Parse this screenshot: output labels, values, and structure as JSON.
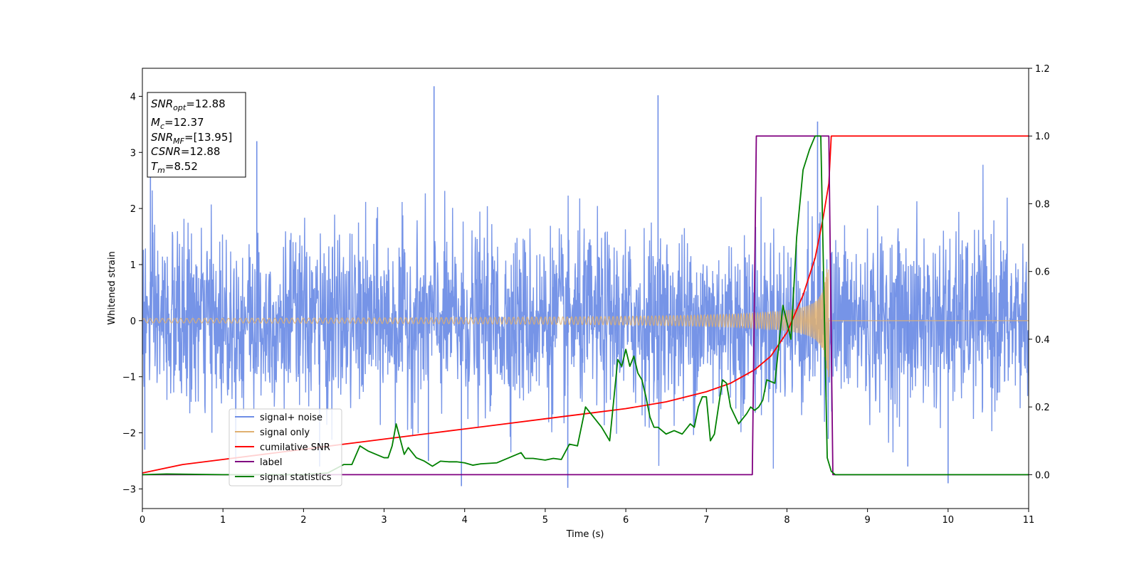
{
  "chart_data": {
    "type": "line",
    "xlabel": "Time (s)",
    "ylabel": "Whitened strain",
    "xlim": [
      0,
      11
    ],
    "ylim": [
      -3.35,
      4.5
    ],
    "y2lim": [
      -0.1,
      1.2
    ],
    "x_ticks": [
      "0",
      "1",
      "2",
      "3",
      "4",
      "5",
      "6",
      "7",
      "8",
      "9",
      "10",
      "11"
    ],
    "y_ticks": [
      "−3",
      "−2",
      "−1",
      "0",
      "1",
      "2",
      "3",
      "4"
    ],
    "y2_ticks": [
      "0.0",
      "0.2",
      "0.4",
      "0.6",
      "0.8",
      "1.0",
      "1.2"
    ],
    "grid": false,
    "legend_position": "lower-left",
    "colors": {
      "signal_noise": "#6f8ee6",
      "signal_only": "#e0b070",
      "cumulative_snr": "#ff0000",
      "label": "#800080",
      "signal_statistics": "#008000"
    },
    "annotation": {
      "lines": [
        {
          "base": "SNR",
          "sub": "opt",
          "value": "=12.88"
        },
        {
          "base": "M",
          "sub": "c",
          "value": "=12.37"
        },
        {
          "base": "SNR",
          "sub": "MF",
          "value": "=[13.95]"
        },
        {
          "base": "CSNR",
          "sub": "",
          "value": "=12.88"
        },
        {
          "base": "T",
          "sub": "m",
          "value": "=8.52"
        }
      ]
    },
    "series": [
      {
        "name": "signal+ noise",
        "axis": "left",
        "description": "whitened strain samples, roughly ±2 with spikes to 4.2",
        "spikes": [
          [
            3.62,
            4.18
          ],
          [
            6.4,
            4.02
          ],
          [
            3.55,
            -2.5
          ],
          [
            5.28,
            -2.98
          ],
          [
            3.96,
            -2.95
          ],
          [
            10.0,
            -2.9
          ],
          [
            0.1,
            3.1
          ],
          [
            1.42,
            3.2
          ],
          [
            8.38,
            3.55
          ],
          [
            2.2,
            -2.6
          ],
          [
            9.5,
            -2.6
          ],
          [
            0.03,
            -2.3
          ]
        ]
      },
      {
        "name": "signal only",
        "axis": "left",
        "description": "chirp ending at merger",
        "merger_time": 8.52,
        "start_amplitude": 0.04,
        "peak_amplitude": 1.0
      },
      {
        "name": "cumilative SNR",
        "axis": "right",
        "x": [
          0,
          0.5,
          1,
          1.5,
          2,
          2.5,
          3,
          3.5,
          4,
          4.5,
          5,
          5.5,
          6,
          6.5,
          7,
          7.3,
          7.6,
          7.8,
          8.0,
          8.2,
          8.35,
          8.45,
          8.52,
          8.55,
          11
        ],
        "y": [
          0.005,
          0.03,
          0.045,
          0.06,
          0.075,
          0.09,
          0.105,
          0.12,
          0.135,
          0.15,
          0.165,
          0.18,
          0.195,
          0.215,
          0.245,
          0.27,
          0.31,
          0.35,
          0.42,
          0.53,
          0.64,
          0.76,
          0.86,
          1.0,
          1.0
        ]
      },
      {
        "name": "label",
        "axis": "right",
        "x": [
          0,
          7.57,
          7.62,
          8.52,
          8.57,
          11
        ],
        "y": [
          0.0,
          0.0,
          1.0,
          1.0,
          0.0,
          0.0
        ]
      },
      {
        "name": "signal statistics",
        "axis": "right",
        "x": [
          0,
          0.3,
          1,
          2,
          2.3,
          2.5,
          2.6,
          2.7,
          2.8,
          2.9,
          3.0,
          3.05,
          3.1,
          3.15,
          3.25,
          3.3,
          3.4,
          3.5,
          3.6,
          3.7,
          3.8,
          3.9,
          4.0,
          4.1,
          4.2,
          4.4,
          4.6,
          4.7,
          4.75,
          4.85,
          5.0,
          5.1,
          5.2,
          5.3,
          5.4,
          5.5,
          5.6,
          5.7,
          5.8,
          5.9,
          5.95,
          6.0,
          6.05,
          6.1,
          6.15,
          6.2,
          6.25,
          6.3,
          6.35,
          6.4,
          6.5,
          6.6,
          6.7,
          6.8,
          6.85,
          6.9,
          6.95,
          7.0,
          7.05,
          7.1,
          7.15,
          7.2,
          7.25,
          7.3,
          7.4,
          7.5,
          7.55,
          7.6,
          7.65,
          7.7,
          7.75,
          7.85,
          7.95,
          8.05,
          8.12,
          8.2,
          8.28,
          8.35,
          8.42,
          8.5,
          8.55,
          8.6,
          8.65,
          11
        ],
        "y": [
          0.0,
          0.002,
          0.0,
          0.0,
          0.005,
          0.03,
          0.03,
          0.085,
          0.07,
          0.06,
          0.05,
          0.05,
          0.085,
          0.15,
          0.06,
          0.08,
          0.05,
          0.04,
          0.025,
          0.04,
          0.038,
          0.038,
          0.035,
          0.028,
          0.032,
          0.035,
          0.055,
          0.065,
          0.048,
          0.048,
          0.043,
          0.048,
          0.045,
          0.09,
          0.085,
          0.2,
          0.17,
          0.14,
          0.1,
          0.34,
          0.32,
          0.37,
          0.32,
          0.35,
          0.3,
          0.28,
          0.23,
          0.17,
          0.14,
          0.14,
          0.12,
          0.13,
          0.12,
          0.15,
          0.14,
          0.2,
          0.23,
          0.23,
          0.1,
          0.12,
          0.2,
          0.28,
          0.27,
          0.2,
          0.15,
          0.18,
          0.2,
          0.19,
          0.2,
          0.22,
          0.28,
          0.27,
          0.5,
          0.4,
          0.7,
          0.9,
          0.96,
          1.0,
          1.0,
          0.05,
          0.01,
          0.0,
          0.0,
          0.0
        ]
      }
    ]
  }
}
